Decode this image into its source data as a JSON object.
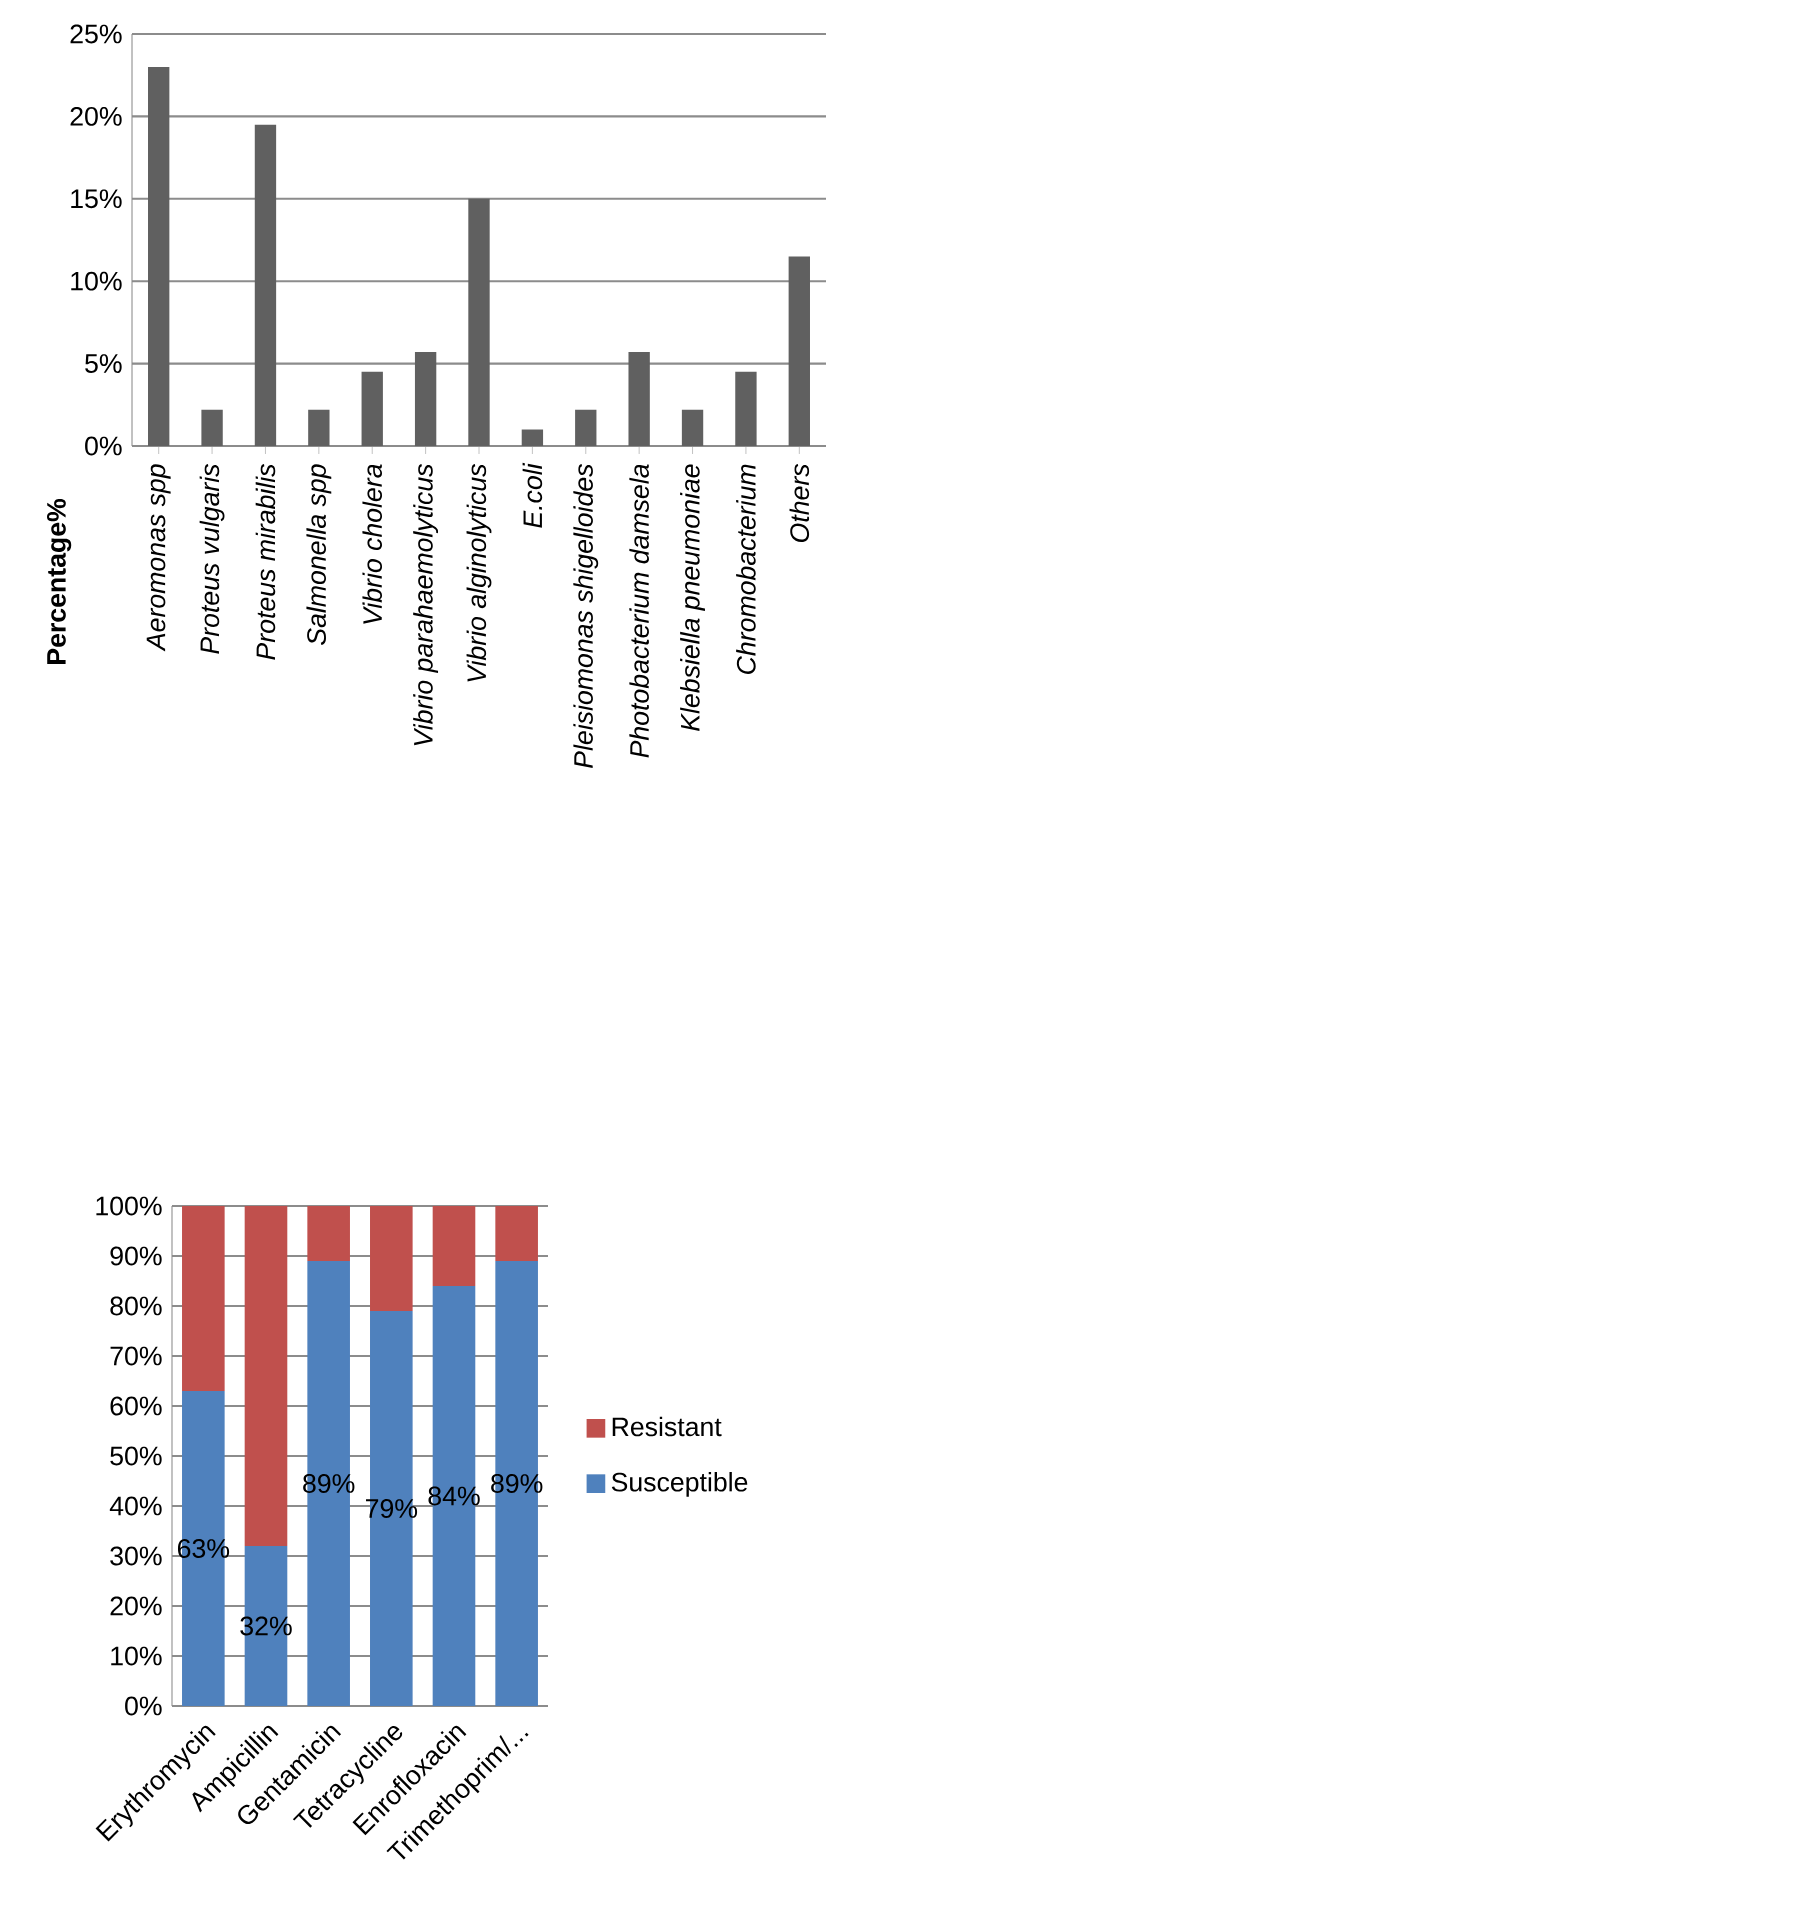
{
  "chart_data": [
    {
      "type": "bar",
      "ylabel": "Percentage%",
      "categories": [
        "Aeromonas spp",
        "Proteus vulgaris",
        "Proteus mirabilis",
        "Salmonella spp",
        "Vibrio cholera",
        "Vibrio parahaemolyticus",
        "Vibrio alginolyticus",
        "E.coli",
        "Pleisiomonas shigelloides",
        "Photobacterium damsela",
        "Klebsiella pneumoniae",
        "Chromobacterium",
        "Others"
      ],
      "values": [
        23.0,
        2.2,
        19.5,
        2.2,
        4.5,
        5.7,
        15.0,
        1.0,
        2.2,
        5.7,
        2.2,
        4.5,
        11.5
      ],
      "color": "#606060",
      "ylim": [
        0,
        25
      ],
      "yticks": [
        {
          "value": 0,
          "label": "0%"
        },
        {
          "value": 5,
          "label": "5%"
        },
        {
          "value": 10,
          "label": "10%"
        },
        {
          "value": 15,
          "label": "15%"
        },
        {
          "value": 20,
          "label": "20%"
        },
        {
          "value": 25,
          "label": "25%"
        }
      ],
      "grid": "y"
    },
    {
      "type": "bar",
      "stacked": true,
      "legend": "right",
      "grid": "y",
      "categories": [
        "Erythromycin",
        "Ampicillin",
        "Gentamicin",
        "Tetracycline",
        "Enrofloxacin",
        "Trimethoprim/..."
      ],
      "series": [
        {
          "name": "Susceptible",
          "color": "#4f81bd",
          "values": [
            63,
            32,
            89,
            79,
            84,
            89
          ],
          "value_labels": [
            "63%",
            "32%",
            "89%",
            "79%",
            "84%",
            "89%"
          ]
        },
        {
          "name": "Resistant",
          "color": "#c0504d",
          "values": [
            37,
            68,
            11,
            21,
            16,
            11
          ]
        }
      ],
      "ylim": [
        0,
        100
      ],
      "yticks": [
        {
          "value": 0,
          "label": "0%"
        },
        {
          "value": 10,
          "label": "10%"
        },
        {
          "value": 20,
          "label": "20%"
        },
        {
          "value": 30,
          "label": "30%"
        },
        {
          "value": 40,
          "label": "40%"
        },
        {
          "value": 50,
          "label": "50%"
        },
        {
          "value": 60,
          "label": "60%"
        },
        {
          "value": 70,
          "label": "70%"
        },
        {
          "value": 80,
          "label": "80%"
        },
        {
          "value": 90,
          "label": "90%"
        },
        {
          "value": 100,
          "label": "100%"
        }
      ]
    }
  ]
}
